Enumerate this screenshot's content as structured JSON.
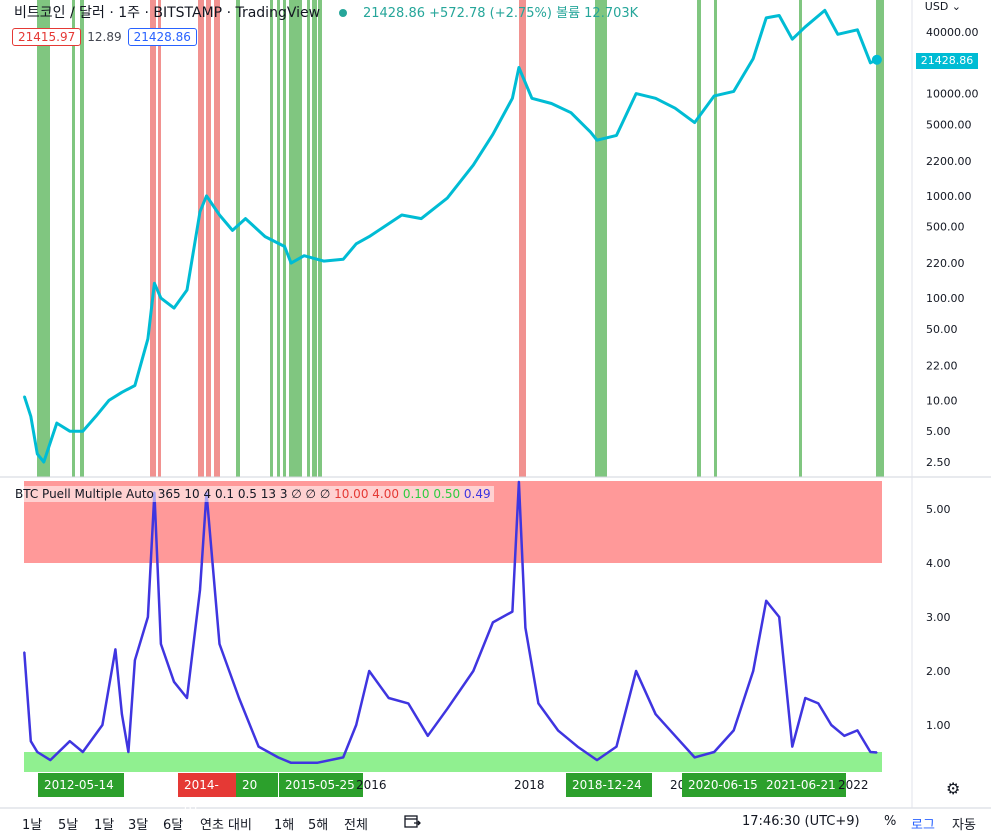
{
  "header": {
    "symbol": "비트코인 / 달러 · 1주 · BITSTAMP · TradingView",
    "quote": "21428.86 +572.78 (+2.75%) 볼륨 12.703K"
  },
  "price_boxes": {
    "sell": "21415.97",
    "spread": "12.89",
    "buy": "21428.86"
  },
  "currency": "USD ⌄",
  "current_price_tag": "21428.86",
  "indicator_legend": {
    "name": "BTC Puell Multiple Auto 365 10 4 0.1 0.5 13 3  ∅ ∅ ∅ ",
    "v1": "10.00",
    "v2": "4.00",
    "v3": "0.10",
    "v4": "0.50",
    "v5": "0.49"
  },
  "date_labels": [
    "2012-05-14",
    "2014-01-",
    "20",
    "2015-05-25",
    "2016",
    "2018",
    "2018-12-24",
    "20",
    "2020-06-15",
    "2021-06-21",
    "2022"
  ],
  "bottom_bar": {
    "ranges": [
      "1날",
      "5날",
      "1달",
      "3달",
      "6달",
      "연초 대비",
      "1해",
      "5해",
      "전체"
    ],
    "compare_icon": "date-range-icon",
    "time": "17:46:30 (UTC+9)",
    "percent": "%",
    "log": "로그",
    "auto": "자동"
  },
  "colors": {
    "price_line": "#00bcd4",
    "puell_line": "#3f35e0",
    "buy_zone": "#2ca02c",
    "sell_zone": "#e53935",
    "band_red": "#ff9999",
    "band_green": "#90f090"
  },
  "chart_data": [
    {
      "type": "line",
      "title": "비트코인 / 달러 · 1주 · BITSTAMP",
      "scale": "log",
      "yaxis_ticks": [
        "40000.00",
        "10000.00",
        "5000.00",
        "2200.00",
        "1000.00",
        "500.00",
        "220.00",
        "100.00",
        "50.00",
        "22.00",
        "10.00",
        "5.00",
        "2.50"
      ],
      "x": [
        "2011-08",
        "2011-09",
        "2011-10",
        "2011-11",
        "2012-01",
        "2012-03",
        "2012-05",
        "2012-07",
        "2012-09",
        "2012-11",
        "2013-01",
        "2013-03",
        "2013-04",
        "2013-05",
        "2013-07",
        "2013-09",
        "2013-11",
        "2013-12",
        "2014-02",
        "2014-04",
        "2014-06",
        "2014-09",
        "2014-12",
        "2015-01",
        "2015-03",
        "2015-06",
        "2015-09",
        "2015-11",
        "2016-01",
        "2016-06",
        "2016-09",
        "2017-01",
        "2017-05",
        "2017-08",
        "2017-11",
        "2017-12",
        "2018-02",
        "2018-05",
        "2018-08",
        "2018-11",
        "2018-12",
        "2019-03",
        "2019-06",
        "2019-09",
        "2019-12",
        "2020-03",
        "2020-06",
        "2020-09",
        "2020-12",
        "2021-02",
        "2021-04",
        "2021-06",
        "2021-08",
        "2021-11",
        "2022-01",
        "2022-04",
        "2022-06",
        "2022-07"
      ],
      "y": [
        11,
        7,
        3,
        2.5,
        6,
        5,
        5,
        7,
        10,
        12,
        14,
        40,
        140,
        100,
        80,
        120,
        700,
        1000,
        650,
        460,
        600,
        400,
        320,
        220,
        260,
        230,
        240,
        340,
        400,
        650,
        600,
        950,
        2000,
        4000,
        9000,
        18000,
        9000,
        8000,
        6500,
        4200,
        3500,
        3900,
        10000,
        9000,
        7200,
        5200,
        9500,
        10500,
        22000,
        55000,
        58000,
        34000,
        45000,
        65000,
        38000,
        42000,
        20000,
        21428.86
      ]
    },
    {
      "type": "line",
      "title": "BTC Puell Multiple",
      "yaxis_ticks": [
        "5.00",
        "4.00",
        "3.00",
        "2.00",
        "1.00"
      ],
      "ylim": [
        0,
        5.6
      ],
      "bands": [
        {
          "name": "sell",
          "from": 4.0,
          "to": 5.6,
          "color": "#ff9999"
        },
        {
          "name": "buy",
          "from": 0.1,
          "to": 0.5,
          "color": "#90f090"
        }
      ],
      "x": [
        "2011-08",
        "2011-09",
        "2011-10",
        "2011-12",
        "2012-03",
        "2012-05",
        "2012-08",
        "2012-10",
        "2012-11",
        "2012-12",
        "2013-01",
        "2013-03",
        "2013-04",
        "2013-05",
        "2013-07",
        "2013-09",
        "2013-11",
        "2013-12",
        "2014-02",
        "2014-05",
        "2014-08",
        "2014-11",
        "2015-01",
        "2015-05",
        "2015-09",
        "2015-11",
        "2016-01",
        "2016-04",
        "2016-07",
        "2016-10",
        "2017-01",
        "2017-05",
        "2017-08",
        "2017-11",
        "2017-12",
        "2018-01",
        "2018-03",
        "2018-06",
        "2018-09",
        "2018-12",
        "2019-03",
        "2019-06",
        "2019-09",
        "2019-12",
        "2020-03",
        "2020-06",
        "2020-09",
        "2020-12",
        "2021-02",
        "2021-04",
        "2021-06",
        "2021-08",
        "2021-10",
        "2021-12",
        "2022-02",
        "2022-04",
        "2022-06",
        "2022-07"
      ],
      "y": [
        2.35,
        0.7,
        0.5,
        0.35,
        0.7,
        0.5,
        1.0,
        2.4,
        1.2,
        0.5,
        2.2,
        3.0,
        5.3,
        2.5,
        1.8,
        1.5,
        3.5,
        5.3,
        2.5,
        1.5,
        0.6,
        0.4,
        0.3,
        0.3,
        0.4,
        1.0,
        2.0,
        1.5,
        1.4,
        0.8,
        1.3,
        2.0,
        2.9,
        3.1,
        5.5,
        2.8,
        1.4,
        0.9,
        0.6,
        0.35,
        0.6,
        2.0,
        1.2,
        0.8,
        0.4,
        0.5,
        0.9,
        2.0,
        3.3,
        3.0,
        0.6,
        1.5,
        1.4,
        1.0,
        0.8,
        0.9,
        0.5,
        0.49
      ]
    }
  ]
}
